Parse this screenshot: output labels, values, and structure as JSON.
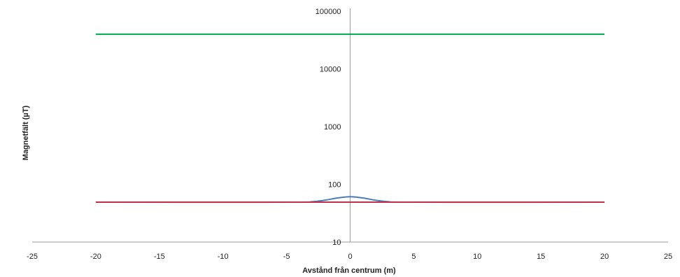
{
  "chart_data": {
    "type": "line",
    "title": "",
    "xlabel": "Avstånd från centrum (m)",
    "ylabel": "Magnetfält (µT)",
    "xlim": [
      -25,
      25
    ],
    "ylim": [
      10,
      100000
    ],
    "yscale": "log",
    "x_ticks": [
      -25,
      -20,
      -15,
      -10,
      -5,
      0,
      5,
      10,
      15,
      20,
      25
    ],
    "y_ticks": [
      10,
      100,
      1000,
      10000,
      100000
    ],
    "grid": false,
    "legend": "none",
    "series": [
      {
        "color": "#00a550",
        "x": [
          -20,
          20
        ],
        "y": [
          40000,
          40000
        ]
      },
      {
        "color": "#4a7ebb",
        "x": [
          -20,
          -5,
          -3,
          -2,
          -1,
          0,
          1,
          2,
          3,
          5,
          20
        ],
        "y": [
          49,
          49,
          50,
          53,
          58,
          61,
          58,
          53,
          50,
          49,
          49
        ]
      },
      {
        "color": "#c0304a",
        "x": [
          -20,
          20
        ],
        "y": [
          49,
          49
        ]
      }
    ]
  }
}
